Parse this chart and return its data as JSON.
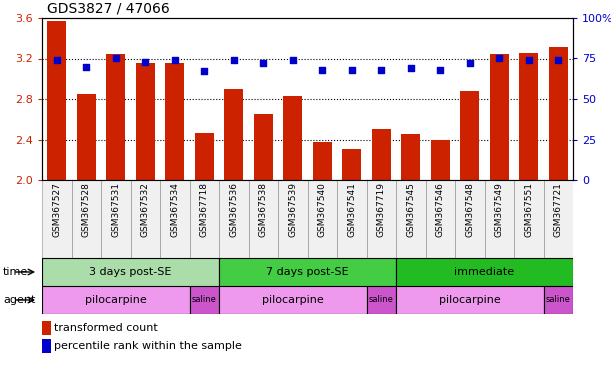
{
  "title": "GDS3827 / 47066",
  "samples": [
    "GSM367527",
    "GSM367528",
    "GSM367531",
    "GSM367532",
    "GSM367534",
    "GSM367718",
    "GSM367536",
    "GSM367538",
    "GSM367539",
    "GSM367540",
    "GSM367541",
    "GSM367719",
    "GSM367545",
    "GSM367546",
    "GSM367548",
    "GSM367549",
    "GSM367551",
    "GSM367721"
  ],
  "transformed_count": [
    3.57,
    2.85,
    3.24,
    3.16,
    3.16,
    2.46,
    2.9,
    2.65,
    2.83,
    2.38,
    2.31,
    2.5,
    2.45,
    2.4,
    2.88,
    3.24,
    3.25,
    3.31
  ],
  "percentile_rank": [
    74,
    70,
    75,
    73,
    74,
    67,
    74,
    72,
    74,
    68,
    68,
    68,
    69,
    68,
    72,
    75,
    74,
    74
  ],
  "ylim_left": [
    2.0,
    3.6
  ],
  "ylim_right": [
    0,
    100
  ],
  "yticks_left": [
    2.0,
    2.4,
    2.8,
    3.2,
    3.6
  ],
  "yticks_right": [
    0,
    25,
    50,
    75,
    100
  ],
  "bar_color": "#cc2200",
  "dot_color": "#0000cc",
  "time_groups": [
    {
      "label": "3 days post-SE",
      "start": 0,
      "end": 5,
      "color": "#aaddaa"
    },
    {
      "label": "7 days post-SE",
      "start": 6,
      "end": 11,
      "color": "#44cc44"
    },
    {
      "label": "immediate",
      "start": 12,
      "end": 17,
      "color": "#22bb22"
    }
  ],
  "agent_groups": [
    {
      "label": "pilocarpine",
      "start": 0,
      "end": 4,
      "color": "#ee99ee"
    },
    {
      "label": "saline",
      "start": 5,
      "end": 5,
      "color": "#cc55cc"
    },
    {
      "label": "pilocarpine",
      "start": 6,
      "end": 10,
      "color": "#ee99ee"
    },
    {
      "label": "saline",
      "start": 11,
      "end": 11,
      "color": "#cc55cc"
    },
    {
      "label": "pilocarpine",
      "start": 12,
      "end": 16,
      "color": "#ee99ee"
    },
    {
      "label": "saline",
      "start": 17,
      "end": 17,
      "color": "#cc55cc"
    }
  ],
  "time_label": "time",
  "agent_label": "agent",
  "legend_bar": "transformed count",
  "legend_dot": "percentile rank within the sample",
  "background_color": "#ffffff"
}
